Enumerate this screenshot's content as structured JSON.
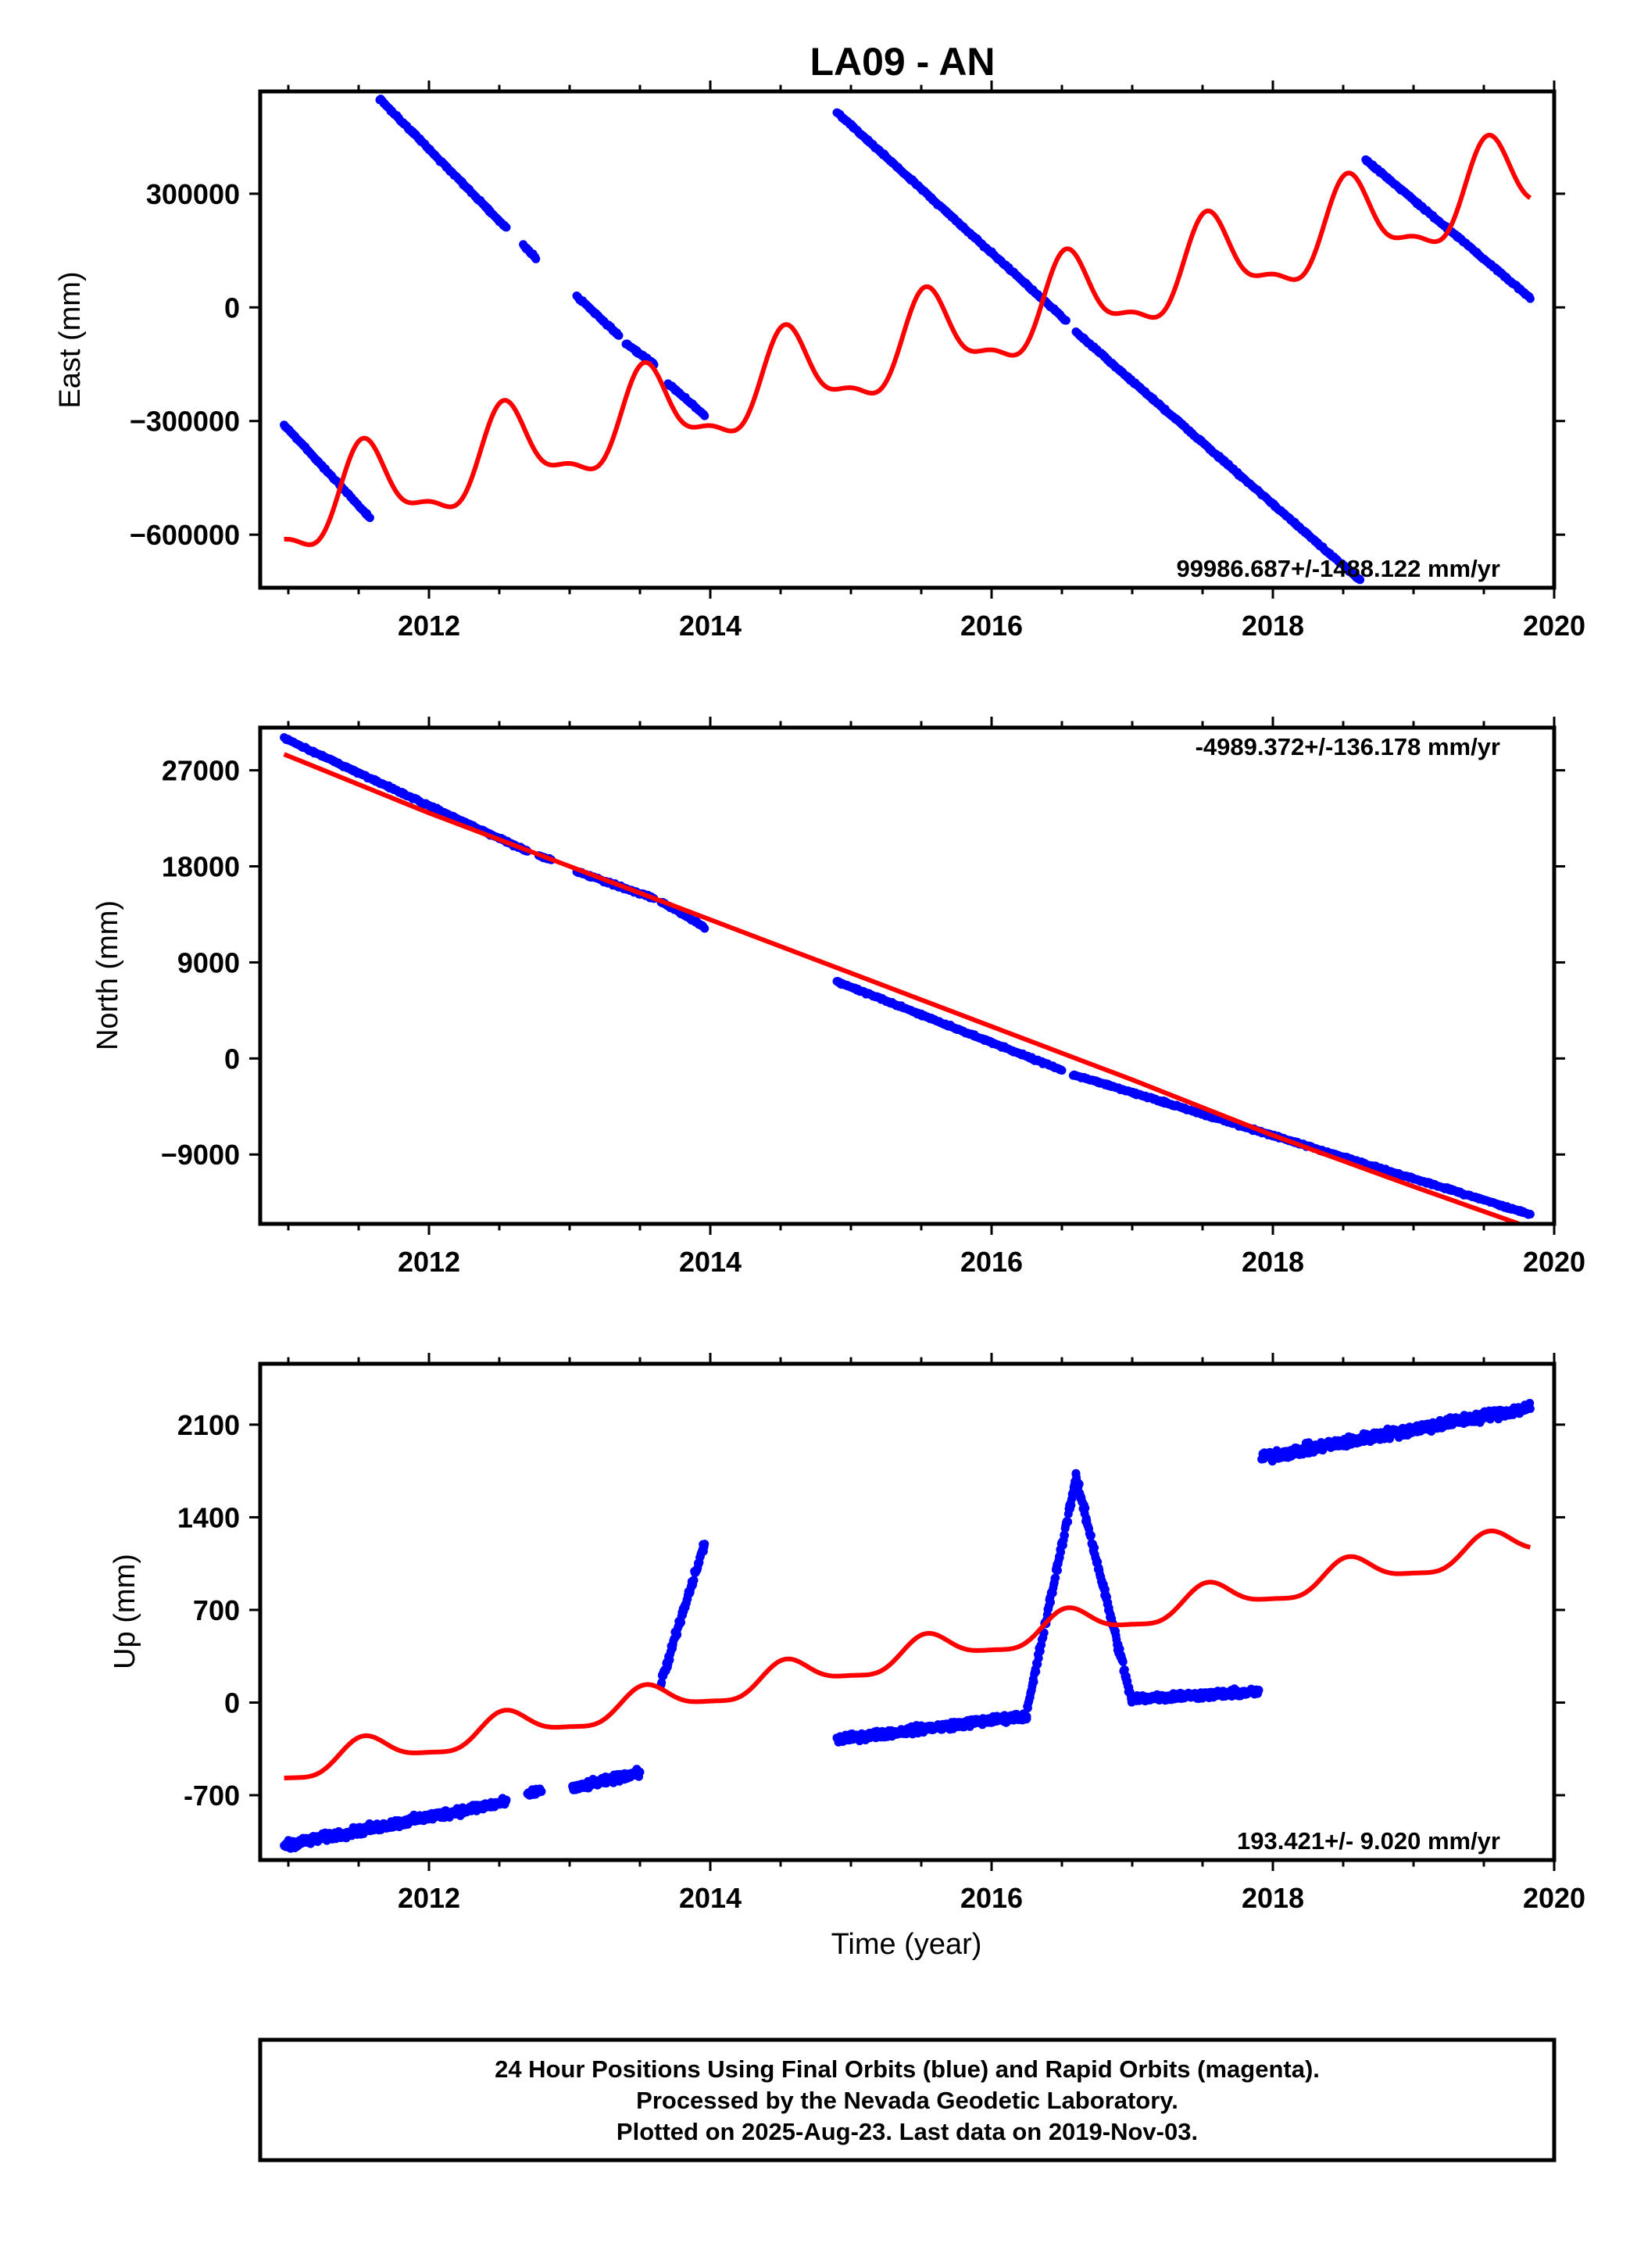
{
  "title": "LA09 - AN",
  "footer_lines": [
    "24 Hour Positions Using Final Orbits (blue) and Rapid Orbits (magenta).",
    "Processed by the Nevada Geodetic Laboratory.",
    "Plotted on 2025-Aug-23. Last data on 2019-Nov-03."
  ],
  "colors": {
    "final_orbits": "#0000ff",
    "model_fit": "#ff0000",
    "frame": "#000000"
  },
  "chart_data": [
    {
      "type": "scatter",
      "ylabel": "East (mm)",
      "xlabel": "",
      "xlim": [
        2010.8,
        2020.0
      ],
      "ylim": [
        -740000,
        570000
      ],
      "x_ticks": [
        "2012",
        "2014",
        "2016",
        "2018",
        "2020"
      ],
      "y_ticks": [
        "300000",
        "0",
        "−300000",
        "−600000"
      ],
      "rate_label": "99986.687+/-1488.122 mm/yr",
      "grid": false,
      "series": [
        {
          "kind": "points",
          "color": "blue",
          "segments": [
            [
              [
                2010.97,
                -310000
              ],
              [
                2011.58,
                -555000
              ]
            ],
            [
              [
                2011.65,
                550000
              ],
              [
                2012.55,
                210000
              ]
            ],
            [
              [
                2012.67,
                165000
              ],
              [
                2012.76,
                130000
              ]
            ],
            [
              [
                2013.05,
                30000
              ],
              [
                2013.35,
                -75000
              ]
            ],
            [
              [
                2013.4,
                -95000
              ],
              [
                2013.6,
                -150000
              ]
            ],
            [
              [
                2013.7,
                -200000
              ],
              [
                2013.96,
                -285000
              ]
            ],
            [
              [
                2014.9,
                515000
              ],
              [
                2016.53,
                -35000
              ]
            ],
            [
              [
                2016.6,
                -65000
              ],
              [
                2018.62,
                -720000
              ]
            ],
            [
              [
                2018.66,
                390000
              ],
              [
                2019.83,
                25000
              ]
            ]
          ]
        },
        {
          "kind": "line",
          "color": "red",
          "trend": {
            "x0": 2010.97,
            "y0": -550000,
            "rate": 99986.687
          },
          "annual_amplitude": 110000,
          "semiannual_amplitude": 40000,
          "x_range": [
            2010.97,
            2019.83
          ]
        }
      ]
    },
    {
      "type": "scatter",
      "ylabel": "North (mm)",
      "xlabel": "",
      "xlim": [
        2010.8,
        2020.0
      ],
      "ylim": [
        -15500,
        31000
      ],
      "x_ticks": [
        "2012",
        "2014",
        "2016",
        "2018",
        "2020"
      ],
      "y_ticks": [
        "27000",
        "18000",
        "9000",
        "0",
        "−9000"
      ],
      "rate_label": "-4989.372+/-136.178 mm/yr",
      "grid": false,
      "series": [
        {
          "kind": "points",
          "color": "blue",
          "segments": [
            [
              [
                2010.97,
                30000
              ],
              [
                2012.7,
                19400
              ]
            ],
            [
              [
                2012.78,
                19000
              ],
              [
                2012.87,
                18600
              ]
            ],
            [
              [
                2013.05,
                17500
              ],
              [
                2013.6,
                15000
              ]
            ],
            [
              [
                2013.65,
                14700
              ],
              [
                2013.96,
                12300
              ]
            ],
            [
              [
                2014.9,
                7200
              ],
              [
                2016.5,
                -1100
              ]
            ],
            [
              [
                2016.58,
                -1500
              ],
              [
                2019.83,
                -14600
              ]
            ]
          ]
        },
        {
          "kind": "line",
          "color": "red",
          "points": [
            [
              2010.97,
              28500
            ],
            [
              2012.0,
              23000
            ],
            [
              2013.0,
              18000
            ],
            [
              2014.0,
              13000
            ],
            [
              2015.0,
              8000
            ],
            [
              2016.0,
              3000
            ],
            [
              2017.0,
              -2000
            ],
            [
              2018.0,
              -7200
            ],
            [
              2019.0,
              -12000
            ],
            [
              2019.75,
              -15500
            ]
          ]
        }
      ]
    },
    {
      "type": "scatter",
      "ylabel": "Up (mm)",
      "xlabel": "Time (year)",
      "xlim": [
        2010.8,
        2020.0
      ],
      "ylim": [
        -1190,
        2560
      ],
      "x_ticks": [
        "2012",
        "2014",
        "2016",
        "2018",
        "2020"
      ],
      "y_ticks": [
        "2100",
        "1400",
        "700",
        "0",
        "-700"
      ],
      "rate_label": "193.421+/- 9.020 mm/yr",
      "grid": false,
      "series": [
        {
          "kind": "points",
          "color": "blue",
          "clusters": [
            {
              "x": [
                2010.97,
                2012.55
              ],
              "y": [
                -1080,
                -750
              ],
              "spread": 45
            },
            {
              "x": [
                2012.7,
                2012.8
              ],
              "y": [
                -700,
                -660
              ],
              "spread": 35
            },
            {
              "x": [
                2013.02,
                2013.5
              ],
              "y": [
                -650,
                -530
              ],
              "spread": 40
            },
            {
              "x": [
                2013.65,
                2013.96
              ],
              "y": [
                150,
                1200
              ],
              "spread": 60
            },
            {
              "x": [
                2014.9,
                2016.25
              ],
              "y": [
                -280,
                -100
              ],
              "spread": 40
            },
            {
              "x": [
                2016.25,
                2016.6
              ],
              "y": [
                -80,
                1700
              ],
              "spread": 60
            },
            {
              "x": [
                2016.6,
                2017.0
              ],
              "y": [
                1700,
                0
              ],
              "spread": 60
            },
            {
              "x": [
                2017.0,
                2017.9
              ],
              "y": [
                30,
                80
              ],
              "spread": 40
            },
            {
              "x": [
                2017.92,
                2019.83
              ],
              "y": [
                1850,
                2230
              ],
              "spread": 55
            }
          ]
        },
        {
          "kind": "line",
          "color": "red",
          "trend": {
            "x0": 2010.97,
            "y0": -500,
            "rate": 193.421
          },
          "annual_amplitude": 110,
          "semiannual_amplitude": 30,
          "x_range": [
            2010.97,
            2019.83
          ]
        }
      ]
    }
  ]
}
